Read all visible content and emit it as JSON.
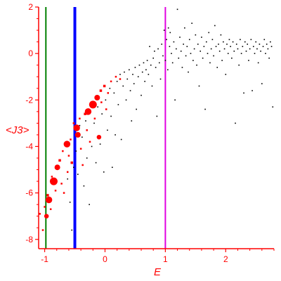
{
  "chart_data": {
    "type": "scatter",
    "title": "",
    "xlabel": "E",
    "ylabel": "<J3>",
    "xlim": [
      -1.1,
      2.8
    ],
    "ylim": [
      -8.4,
      2.0
    ],
    "xticks": [
      -1,
      0,
      1,
      2
    ],
    "yticks": [
      -8,
      -6,
      -4,
      -2,
      0,
      2
    ],
    "colors": {
      "axes": "#ff0000",
      "scatter_black": "#000000",
      "scatter_red": "#ff0000",
      "green_line": "#008000",
      "blue_line": "#0000ff",
      "magenta_line": "#e000e0"
    },
    "vlines": [
      {
        "x": -0.98,
        "color": "#008000",
        "width": 2
      },
      {
        "x": -0.5,
        "color": "#0000ff",
        "width": 4
      },
      {
        "x": 1.0,
        "color": "#e000e0",
        "width": 2
      }
    ],
    "red_points": [
      {
        "x": -1.03,
        "y": -7.6,
        "s": 1
      },
      {
        "x": -0.97,
        "y": -7.0,
        "s": 3
      },
      {
        "x": -0.93,
        "y": -6.3,
        "s": 5
      },
      {
        "x": -0.85,
        "y": -5.5,
        "s": 6
      },
      {
        "x": -0.79,
        "y": -4.9,
        "s": 4
      },
      {
        "x": -0.63,
        "y": -3.9,
        "s": 5
      },
      {
        "x": -0.47,
        "y": -3.2,
        "s": 5
      },
      {
        "x": -0.45,
        "y": -3.5,
        "s": 4
      },
      {
        "x": -0.28,
        "y": -2.5,
        "s": 5
      },
      {
        "x": -0.2,
        "y": -2.2,
        "s": 6
      },
      {
        "x": -0.13,
        "y": -1.9,
        "s": 4
      },
      {
        "x": -0.07,
        "y": -1.6,
        "s": 2
      },
      {
        "x": -0.01,
        "y": -1.4,
        "s": 2
      },
      {
        "x": 0.1,
        "y": -1.2,
        "s": 1
      },
      {
        "x": 0.18,
        "y": -1.0,
        "s": 1
      },
      {
        "x": -1.08,
        "y": -6.9,
        "s": 1
      },
      {
        "x": -1.0,
        "y": -6.6,
        "s": 1
      },
      {
        "x": -0.95,
        "y": -6.1,
        "s": 2
      },
      {
        "x": -0.9,
        "y": -6.7,
        "s": 1
      },
      {
        "x": -0.88,
        "y": -5.3,
        "s": 1
      },
      {
        "x": -0.82,
        "y": -5.9,
        "s": 1
      },
      {
        "x": -0.75,
        "y": -4.6,
        "s": 2
      },
      {
        "x": -0.72,
        "y": -5.6,
        "s": 1
      },
      {
        "x": -0.7,
        "y": -4.2,
        "s": 1
      },
      {
        "x": -0.68,
        "y": -6.0,
        "s": 1
      },
      {
        "x": -0.62,
        "y": -5.1,
        "s": 1
      },
      {
        "x": -0.6,
        "y": -4.4,
        "s": 1
      },
      {
        "x": -0.57,
        "y": -3.7,
        "s": 1
      },
      {
        "x": -0.55,
        "y": -4.7,
        "s": 2
      },
      {
        "x": -0.52,
        "y": -3.0,
        "s": 1
      },
      {
        "x": -0.42,
        "y": -2.8,
        "s": 1
      },
      {
        "x": -0.4,
        "y": -4.1,
        "s": 1
      },
      {
        "x": -0.37,
        "y": -4.8,
        "s": 1
      },
      {
        "x": -0.33,
        "y": -2.6,
        "s": 2
      },
      {
        "x": -0.3,
        "y": -3.3,
        "s": 1
      },
      {
        "x": -0.25,
        "y": -3.8,
        "s": 1
      },
      {
        "x": -0.17,
        "y": -2.8,
        "s": 1
      },
      {
        "x": -0.1,
        "y": -3.6,
        "s": 3
      },
      {
        "x": -0.06,
        "y": -2.1,
        "s": 1
      },
      {
        "x": 0.02,
        "y": -2.4,
        "s": 1
      },
      {
        "x": 0.05,
        "y": -1.7,
        "s": 1
      },
      {
        "x": 0.25,
        "y": -1.1,
        "s": 1
      }
    ],
    "black_points": [
      {
        "x": -0.62,
        "y": -5.4
      },
      {
        "x": -0.58,
        "y": -6.4
      },
      {
        "x": -0.55,
        "y": -7.6
      },
      {
        "x": -0.52,
        "y": -4.9
      },
      {
        "x": -0.48,
        "y": -4.2
      },
      {
        "x": -0.45,
        "y": -5.2
      },
      {
        "x": -0.42,
        "y": -3.1
      },
      {
        "x": -0.38,
        "y": -3.6
      },
      {
        "x": -0.35,
        "y": -5.7
      },
      {
        "x": -0.32,
        "y": -2.9
      },
      {
        "x": -0.3,
        "y": -4.5
      },
      {
        "x": -0.26,
        "y": -6.5
      },
      {
        "x": -0.22,
        "y": -4.0
      },
      {
        "x": -0.18,
        "y": -3.0
      },
      {
        "x": -0.15,
        "y": -4.7
      },
      {
        "x": -0.12,
        "y": -2.3
      },
      {
        "x": -0.08,
        "y": -3.9
      },
      {
        "x": -0.05,
        "y": -2.6
      },
      {
        "x": -0.02,
        "y": -5.1
      },
      {
        "x": 0.01,
        "y": -2.0
      },
      {
        "x": 0.04,
        "y": -3.3
      },
      {
        "x": 0.08,
        "y": -1.5
      },
      {
        "x": 0.1,
        "y": -2.7
      },
      {
        "x": 0.12,
        "y": -4.9
      },
      {
        "x": 0.15,
        "y": -1.7
      },
      {
        "x": 0.17,
        "y": -3.5
      },
      {
        "x": 0.2,
        "y": -1.2
      },
      {
        "x": 0.22,
        "y": -2.2
      },
      {
        "x": 0.25,
        "y": -0.9
      },
      {
        "x": 0.27,
        "y": -3.7
      },
      {
        "x": 0.3,
        "y": -1.4
      },
      {
        "x": 0.32,
        "y": -0.8
      },
      {
        "x": 0.35,
        "y": -2.0
      },
      {
        "x": 0.37,
        "y": -1.1
      },
      {
        "x": 0.4,
        "y": -0.7
      },
      {
        "x": 0.42,
        "y": -1.6
      },
      {
        "x": 0.44,
        "y": -2.9
      },
      {
        "x": 0.46,
        "y": -0.9
      },
      {
        "x": 0.48,
        "y": -1.3
      },
      {
        "x": 0.5,
        "y": -0.6
      },
      {
        "x": 0.52,
        "y": -2.4
      },
      {
        "x": 0.55,
        "y": -1.0
      },
      {
        "x": 0.57,
        "y": -0.5
      },
      {
        "x": 0.6,
        "y": -1.8
      },
      {
        "x": 0.62,
        "y": -0.8
      },
      {
        "x": 0.64,
        "y": -0.4
      },
      {
        "x": 0.66,
        "y": -1.2
      },
      {
        "x": 0.68,
        "y": -0.7
      },
      {
        "x": 0.7,
        "y": -0.3
      },
      {
        "x": 0.72,
        "y": -0.9
      },
      {
        "x": 0.74,
        "y": 0.3
      },
      {
        "x": 0.76,
        "y": -0.5
      },
      {
        "x": 0.78,
        "y": -1.4
      },
      {
        "x": 0.8,
        "y": -0.2
      },
      {
        "x": 0.82,
        "y": 0.1
      },
      {
        "x": 0.84,
        "y": -0.6
      },
      {
        "x": 0.86,
        "y": -2.7
      },
      {
        "x": 0.88,
        "y": 0.2
      },
      {
        "x": 0.9,
        "y": -0.4
      },
      {
        "x": 0.92,
        "y": -1.1
      },
      {
        "x": 0.94,
        "y": 0.4
      },
      {
        "x": 0.96,
        "y": -0.1
      },
      {
        "x": 0.98,
        "y": 1.0
      },
      {
        "x": 1.0,
        "y": -0.3
      },
      {
        "x": 1.02,
        "y": 0.6
      },
      {
        "x": 1.04,
        "y": -0.7
      },
      {
        "x": 1.05,
        "y": 1.1
      },
      {
        "x": 1.07,
        "y": 0.3
      },
      {
        "x": 1.08,
        "y": 0.9
      },
      {
        "x": 1.1,
        "y": 0.0
      },
      {
        "x": 1.12,
        "y": -0.4
      },
      {
        "x": 1.14,
        "y": 0.5
      },
      {
        "x": 1.16,
        "y": -2.0
      },
      {
        "x": 1.18,
        "y": 0.2
      },
      {
        "x": 1.2,
        "y": 1.9
      },
      {
        "x": 1.22,
        "y": -0.2
      },
      {
        "x": 1.24,
        "y": 0.7
      },
      {
        "x": 1.26,
        "y": 0.1
      },
      {
        "x": 1.28,
        "y": -0.6
      },
      {
        "x": 1.3,
        "y": 0.4
      },
      {
        "x": 1.32,
        "y": 1.1
      },
      {
        "x": 1.34,
        "y": -0.1
      },
      {
        "x": 1.36,
        "y": 0.3
      },
      {
        "x": 1.38,
        "y": -0.8
      },
      {
        "x": 1.4,
        "y": 0.6
      },
      {
        "x": 1.42,
        "y": 0.0
      },
      {
        "x": 1.44,
        "y": 1.3
      },
      {
        "x": 1.46,
        "y": -0.3
      },
      {
        "x": 1.48,
        "y": 0.2
      },
      {
        "x": 1.5,
        "y": 0.8
      },
      {
        "x": 1.52,
        "y": -0.5
      },
      {
        "x": 1.54,
        "y": 0.4
      },
      {
        "x": 1.56,
        "y": -1.4
      },
      {
        "x": 1.58,
        "y": 0.1
      },
      {
        "x": 1.6,
        "y": 0.7
      },
      {
        "x": 1.62,
        "y": -0.2
      },
      {
        "x": 1.64,
        "y": 0.3
      },
      {
        "x": 1.66,
        "y": -2.4
      },
      {
        "x": 1.68,
        "y": 0.5
      },
      {
        "x": 1.7,
        "y": 0.0
      },
      {
        "x": 1.72,
        "y": 0.9
      },
      {
        "x": 1.74,
        "y": -0.4
      },
      {
        "x": 1.76,
        "y": 0.2
      },
      {
        "x": 1.78,
        "y": 0.6
      },
      {
        "x": 1.8,
        "y": -0.1
      },
      {
        "x": 1.82,
        "y": 1.2
      },
      {
        "x": 1.84,
        "y": 0.3
      },
      {
        "x": 1.86,
        "y": -0.6
      },
      {
        "x": 1.88,
        "y": 0.4
      },
      {
        "x": 1.9,
        "y": 0.1
      },
      {
        "x": 1.92,
        "y": 0.8
      },
      {
        "x": 1.94,
        "y": -0.3
      },
      {
        "x": 1.96,
        "y": 0.5
      },
      {
        "x": 1.98,
        "y": 0.2
      },
      {
        "x": 2.0,
        "y": -0.9
      },
      {
        "x": 2.02,
        "y": 0.4
      },
      {
        "x": 2.04,
        "y": 0.0
      },
      {
        "x": 2.06,
        "y": 0.6
      },
      {
        "x": 2.08,
        "y": 0.3
      },
      {
        "x": 2.1,
        "y": -0.2
      },
      {
        "x": 2.12,
        "y": 0.5
      },
      {
        "x": 2.14,
        "y": 0.1
      },
      {
        "x": 2.16,
        "y": -3.0
      },
      {
        "x": 2.18,
        "y": 0.4
      },
      {
        "x": 2.2,
        "y": 0.2
      },
      {
        "x": 2.22,
        "y": -0.5
      },
      {
        "x": 2.24,
        "y": 0.6
      },
      {
        "x": 2.26,
        "y": 0.0
      },
      {
        "x": 2.28,
        "y": 0.3
      },
      {
        "x": 2.3,
        "y": -1.7
      },
      {
        "x": 2.32,
        "y": 0.5
      },
      {
        "x": 2.34,
        "y": 0.1
      },
      {
        "x": 2.36,
        "y": 0.4
      },
      {
        "x": 2.38,
        "y": -0.3
      },
      {
        "x": 2.4,
        "y": 0.2
      },
      {
        "x": 2.42,
        "y": 0.6
      },
      {
        "x": 2.44,
        "y": -1.6
      },
      {
        "x": 2.46,
        "y": 0.3
      },
      {
        "x": 2.48,
        "y": 0.0
      },
      {
        "x": 2.5,
        "y": 0.5
      },
      {
        "x": 2.52,
        "y": 0.2
      },
      {
        "x": 2.54,
        "y": -0.4
      },
      {
        "x": 2.56,
        "y": 0.4
      },
      {
        "x": 2.58,
        "y": 0.1
      },
      {
        "x": 2.6,
        "y": -1.3
      },
      {
        "x": 2.62,
        "y": 0.3
      },
      {
        "x": 2.64,
        "y": 0.6
      },
      {
        "x": 2.66,
        "y": 0.0
      },
      {
        "x": 2.68,
        "y": 0.4
      },
      {
        "x": 2.7,
        "y": 0.2
      },
      {
        "x": 2.72,
        "y": -0.2
      },
      {
        "x": 2.74,
        "y": 0.5
      },
      {
        "x": 2.76,
        "y": 0.3
      },
      {
        "x": 2.78,
        "y": -2.3
      }
    ]
  }
}
